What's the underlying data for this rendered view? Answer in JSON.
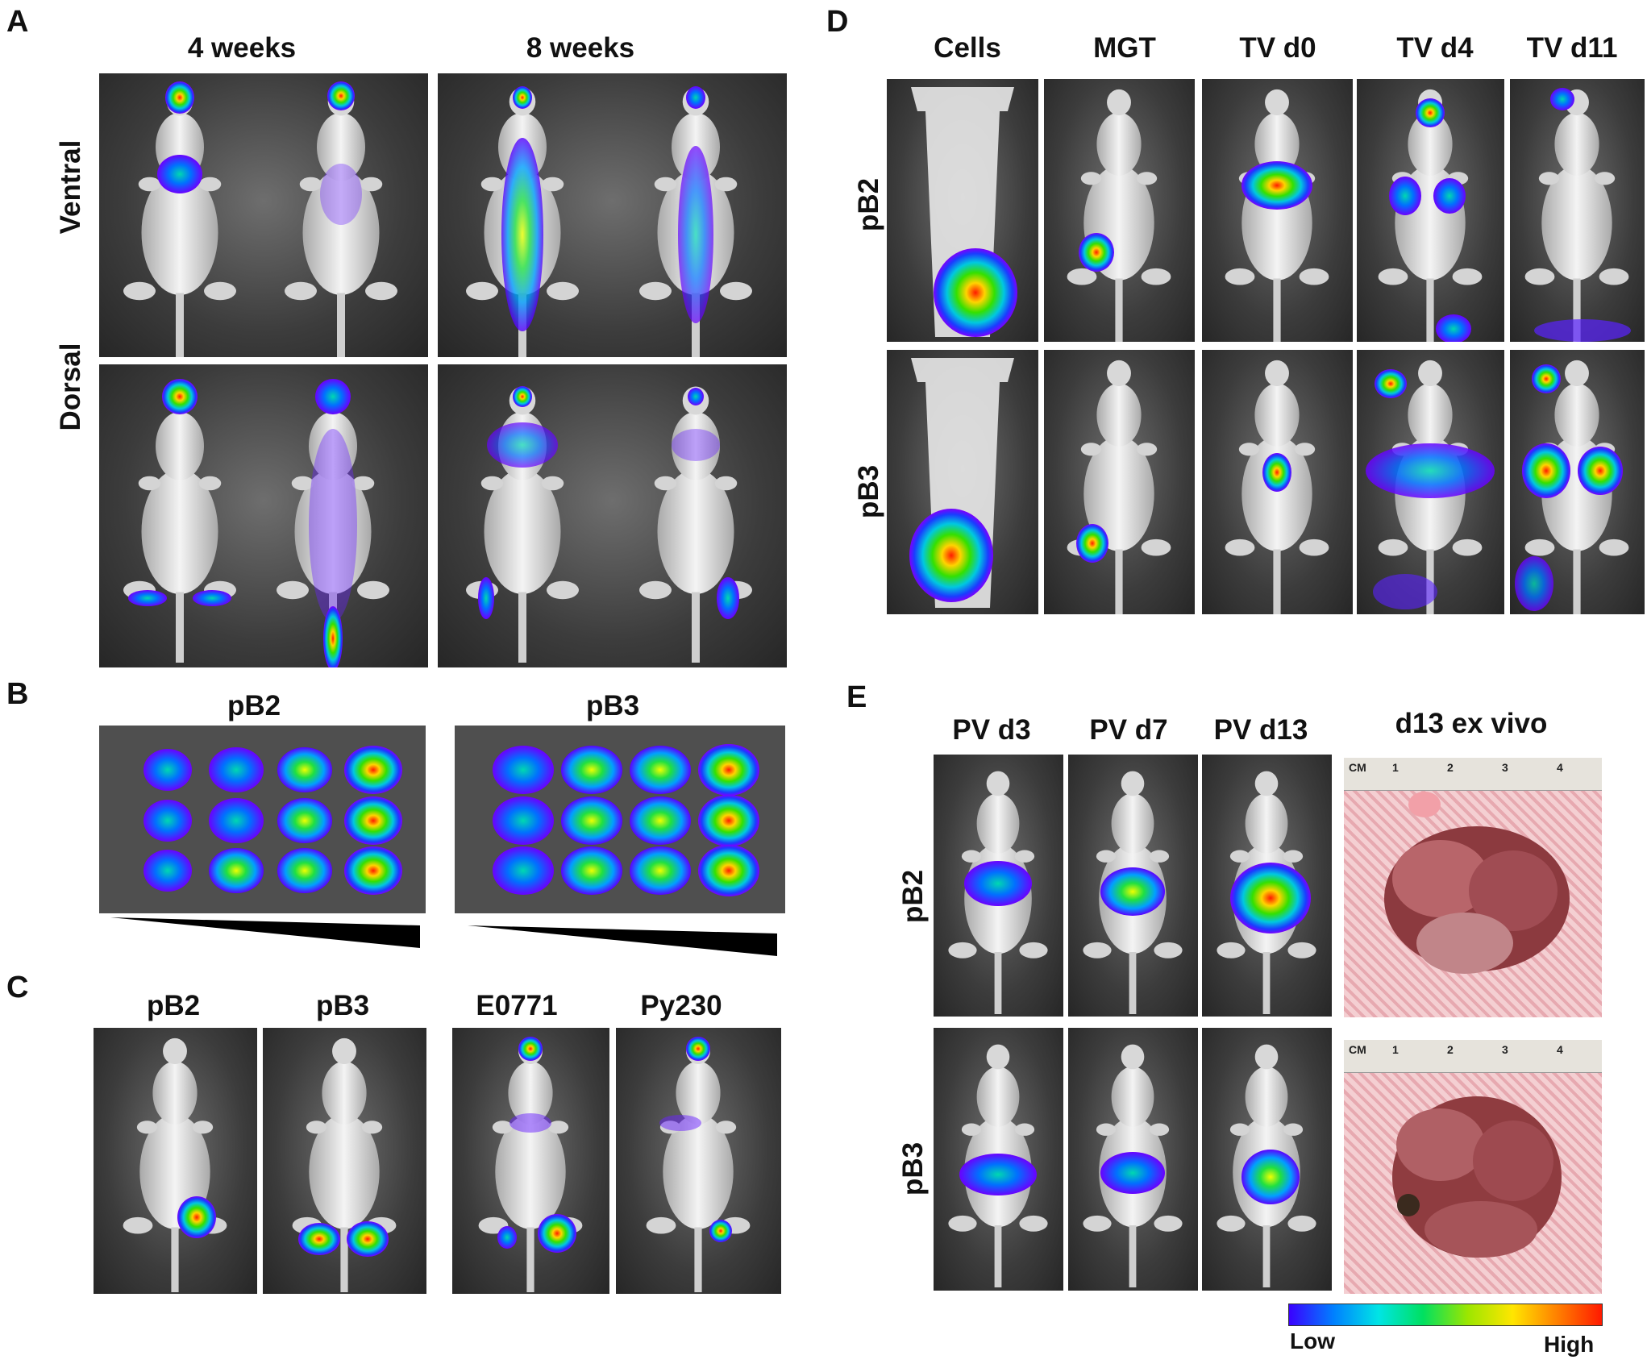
{
  "panels": {
    "A": {
      "letter": "A",
      "columns": [
        "4 weeks",
        "8 weeks"
      ],
      "rows": [
        "Ventral",
        "Dorsal"
      ]
    },
    "B": {
      "letter": "B",
      "columns": [
        "pB2",
        "pB3"
      ]
    },
    "C": {
      "letter": "C",
      "columns": [
        "pB2",
        "pB3",
        "E0771",
        "Py230"
      ]
    },
    "D": {
      "letter": "D",
      "columns": [
        "Cells",
        "MGT",
        "TV d0",
        "TV d4",
        "TV d11"
      ],
      "rows": [
        "pB2",
        "pB3"
      ]
    },
    "E": {
      "letter": "E",
      "columns": [
        "PV d3",
        "PV d7",
        "PV d13",
        "d13 ex vivo"
      ],
      "rows": [
        "pB2",
        "pB3"
      ],
      "ruler": {
        "unit": "CM",
        "ticks": [
          "1",
          "2",
          "3",
          "4"
        ]
      }
    }
  },
  "colorbar": {
    "low": "Low",
    "high": "High"
  }
}
